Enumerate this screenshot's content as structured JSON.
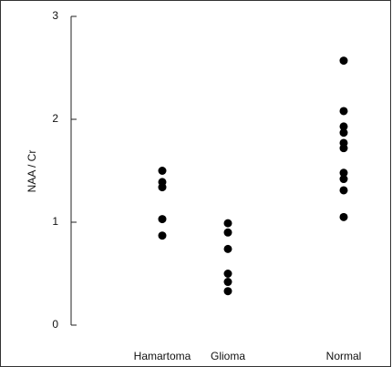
{
  "chart_data": {
    "type": "strip",
    "ylabel": "NAA / Cr",
    "categories": [
      "Hamartoma",
      "Glioma",
      "Normal"
    ],
    "values": [
      [
        1.5,
        1.39,
        1.34,
        1.03,
        0.87
      ],
      [
        0.99,
        0.9,
        0.74,
        0.5,
        0.42,
        0.33
      ],
      [
        2.57,
        2.08,
        1.93,
        1.87,
        1.77,
        1.72,
        1.48,
        1.42,
        1.31,
        1.05
      ]
    ],
    "color": "#000000",
    "ylim": [
      0,
      3
    ],
    "yticks": [
      0,
      1,
      2,
      3
    ]
  }
}
